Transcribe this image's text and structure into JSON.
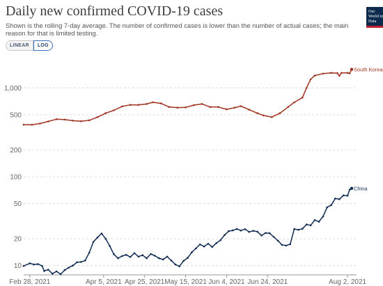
{
  "page": {
    "title": "Daily new confirmed COVID-19 cases",
    "subtitle": "Shown is the rolling 7-day average. The number of confirmed cases is lower than the number of actual cases; the main reason for that is limited testing.",
    "logo_text": "Our World in Data",
    "toggle": {
      "linear_label": "LINEAR",
      "log_label": "LOG",
      "selected": "LOG"
    }
  },
  "chart_data": {
    "type": "line",
    "title": "Daily new confirmed COVID-19 cases",
    "subtitle": "Shown is the rolling 7-day average. The number of confirmed cases is lower than the number of actual cases; the main reason for that is limited testing.",
    "xlabel": "",
    "ylabel": "",
    "y_scale": "log",
    "ylim": [
      8,
      2000
    ],
    "xlim": [
      "2021-02-25",
      "2021-08-04"
    ],
    "y_ticks": [
      10,
      20,
      50,
      100,
      200,
      500,
      1000
    ],
    "y_tick_labels": [
      "10",
      "20",
      "50",
      "100",
      "200",
      "500",
      "1,000"
    ],
    "x_ticks": [
      "2021-02-28",
      "2021-04-05",
      "2021-04-25",
      "2021-05-15",
      "2021-06-04",
      "2021-06-24",
      "2021-08-02"
    ],
    "x_tick_labels": [
      "Feb 28, 2021",
      "Apr 5, 2021",
      "Apr 25, 2021",
      "May 15, 2021",
      "Jun 4, 2021",
      "Jun 24, 2021",
      "Aug 2, 2021"
    ],
    "grid": "horizontal-dashed",
    "legend": "inline-right",
    "series": [
      {
        "name": "South Korea",
        "color": "#a0321f",
        "points": [
          [
            "2021-02-25",
            386
          ],
          [
            "2021-03-01",
            385
          ],
          [
            "2021-03-05",
            398
          ],
          [
            "2021-03-09",
            420
          ],
          [
            "2021-03-13",
            445
          ],
          [
            "2021-03-17",
            440
          ],
          [
            "2021-03-21",
            428
          ],
          [
            "2021-03-25",
            422
          ],
          [
            "2021-03-29",
            432
          ],
          [
            "2021-04-02",
            470
          ],
          [
            "2021-04-06",
            520
          ],
          [
            "2021-04-10",
            560
          ],
          [
            "2021-04-14",
            620
          ],
          [
            "2021-04-18",
            645
          ],
          [
            "2021-04-22",
            645
          ],
          [
            "2021-04-26",
            660
          ],
          [
            "2021-04-29",
            690
          ],
          [
            "2021-05-03",
            670
          ],
          [
            "2021-05-07",
            610
          ],
          [
            "2021-05-11",
            600
          ],
          [
            "2021-05-15",
            605
          ],
          [
            "2021-05-19",
            640
          ],
          [
            "2021-05-23",
            660
          ],
          [
            "2021-05-27",
            610
          ],
          [
            "2021-05-31",
            610
          ],
          [
            "2021-06-04",
            575
          ],
          [
            "2021-06-08",
            600
          ],
          [
            "2021-06-11",
            625
          ],
          [
            "2021-06-15",
            570
          ],
          [
            "2021-06-19",
            520
          ],
          [
            "2021-06-22",
            490
          ],
          [
            "2021-06-26",
            470
          ],
          [
            "2021-06-30",
            520
          ],
          [
            "2021-07-04",
            610
          ],
          [
            "2021-07-07",
            690
          ],
          [
            "2021-07-11",
            780
          ],
          [
            "2021-07-13",
            1000
          ],
          [
            "2021-07-15",
            1250
          ],
          [
            "2021-07-17",
            1380
          ],
          [
            "2021-07-21",
            1450
          ],
          [
            "2021-07-25",
            1480
          ],
          [
            "2021-07-28",
            1470
          ],
          [
            "2021-07-29",
            1370
          ],
          [
            "2021-07-30",
            1480
          ],
          [
            "2021-08-02",
            1480
          ],
          [
            "2021-08-03",
            1460
          ],
          [
            "2021-08-04",
            1620
          ]
        ]
      },
      {
        "name": "China",
        "color": "#0f2a53",
        "points": [
          [
            "2021-02-25",
            9.9
          ],
          [
            "2021-02-28",
            10.6
          ],
          [
            "2021-03-02",
            10.3
          ],
          [
            "2021-03-04",
            10.4
          ],
          [
            "2021-03-06",
            9.9
          ],
          [
            "2021-03-07",
            8.7
          ],
          [
            "2021-03-09",
            9.0
          ],
          [
            "2021-03-11",
            8.1
          ],
          [
            "2021-03-13",
            8.6
          ],
          [
            "2021-03-15",
            8.0
          ],
          [
            "2021-03-17",
            8.9
          ],
          [
            "2021-03-19",
            9.5
          ],
          [
            "2021-03-21",
            10.0
          ],
          [
            "2021-03-23",
            10.9
          ],
          [
            "2021-03-25",
            11.0
          ],
          [
            "2021-03-27",
            11.4
          ],
          [
            "2021-03-29",
            14.0
          ],
          [
            "2021-03-31",
            18.5
          ],
          [
            "2021-04-02",
            20.7
          ],
          [
            "2021-04-04",
            23.0
          ],
          [
            "2021-04-06",
            20.0
          ],
          [
            "2021-04-08",
            16.6
          ],
          [
            "2021-04-10",
            13.4
          ],
          [
            "2021-04-12",
            12.1
          ],
          [
            "2021-04-14",
            12.8
          ],
          [
            "2021-04-16",
            13.2
          ],
          [
            "2021-04-18",
            12.5
          ],
          [
            "2021-04-20",
            13.8
          ],
          [
            "2021-04-22",
            12.6
          ],
          [
            "2021-04-24",
            13.1
          ],
          [
            "2021-04-26",
            12.1
          ],
          [
            "2021-04-28",
            13.5
          ],
          [
            "2021-04-30",
            12.9
          ],
          [
            "2021-05-02",
            12.1
          ],
          [
            "2021-05-04",
            11.7
          ],
          [
            "2021-05-06",
            12.6
          ],
          [
            "2021-05-08",
            11.4
          ],
          [
            "2021-05-10",
            10.3
          ],
          [
            "2021-05-12",
            9.8
          ],
          [
            "2021-05-14",
            11.3
          ],
          [
            "2021-05-16",
            12.2
          ],
          [
            "2021-05-18",
            14.1
          ],
          [
            "2021-05-20",
            15.6
          ],
          [
            "2021-05-22",
            17.3
          ],
          [
            "2021-05-24",
            16.4
          ],
          [
            "2021-05-26",
            17.6
          ],
          [
            "2021-05-28",
            16.2
          ],
          [
            "2021-05-30",
            17.9
          ],
          [
            "2021-06-01",
            19.3
          ],
          [
            "2021-06-03",
            22.1
          ],
          [
            "2021-06-05",
            24.4
          ],
          [
            "2021-06-07",
            24.9
          ],
          [
            "2021-06-09",
            25.8
          ],
          [
            "2021-06-11",
            24.8
          ],
          [
            "2021-06-13",
            25.7
          ],
          [
            "2021-06-15",
            23.9
          ],
          [
            "2021-06-17",
            24.6
          ],
          [
            "2021-06-19",
            24.1
          ],
          [
            "2021-06-21",
            21.8
          ],
          [
            "2021-06-23",
            23.3
          ],
          [
            "2021-06-25",
            23.1
          ],
          [
            "2021-06-27",
            21.0
          ],
          [
            "2021-06-29",
            19.1
          ],
          [
            "2021-07-01",
            17.1
          ],
          [
            "2021-07-03",
            16.8
          ],
          [
            "2021-07-05",
            17.4
          ],
          [
            "2021-07-07",
            25.8
          ],
          [
            "2021-07-09",
            25.3
          ],
          [
            "2021-07-11",
            26.0
          ],
          [
            "2021-07-13",
            29.0
          ],
          [
            "2021-07-15",
            28.4
          ],
          [
            "2021-07-17",
            32.5
          ],
          [
            "2021-07-19",
            31.2
          ],
          [
            "2021-07-21",
            35.6
          ],
          [
            "2021-07-23",
            45.3
          ],
          [
            "2021-07-25",
            47.9
          ],
          [
            "2021-07-27",
            56.9
          ],
          [
            "2021-07-29",
            55.9
          ],
          [
            "2021-07-31",
            61.7
          ],
          [
            "2021-08-02",
            61.2
          ],
          [
            "2021-08-03",
            71.5
          ],
          [
            "2021-08-04",
            74.0
          ]
        ]
      }
    ]
  }
}
